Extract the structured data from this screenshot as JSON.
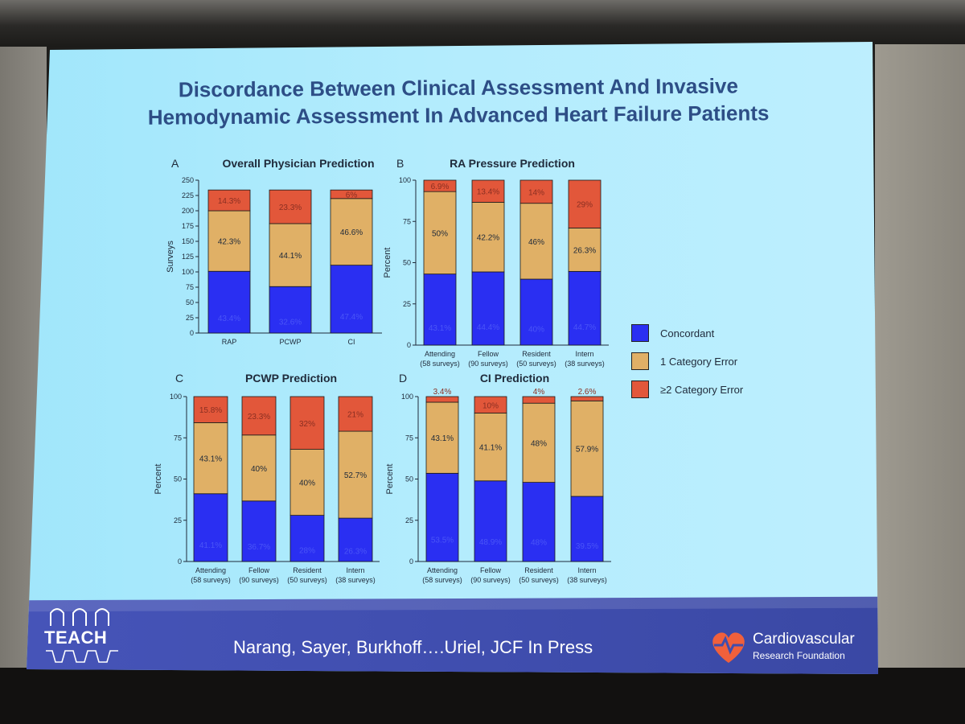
{
  "slide": {
    "title_line1": "Discordance Between Clinical Assessment And Invasive",
    "title_line2": "Hemodynamic Assessment In Advanced Heart Failure Patients",
    "citation": "Narang, Sayer, Burkhoff….Uriel, JCF In Press",
    "teach_logo": "TEACH",
    "org_name": "Cardiovascular",
    "org_sub": "Research Foundation"
  },
  "colors": {
    "concordant": "#2a2ff2",
    "one_error": "#e0b066",
    "two_error": "#e2573a",
    "axis": "#1f2a3a"
  },
  "legend": [
    {
      "label": "Concordant",
      "color": "#2a2ff2"
    },
    {
      "label": "1 Category Error",
      "color": "#e0b066"
    },
    {
      "label": "≥2 Category Error",
      "color": "#e2573a"
    }
  ],
  "chart_data": [
    {
      "type": "bar",
      "panel_letter": "A",
      "title": "Overall Physician Prediction",
      "ylabel": "Surveys",
      "ylim": [
        0,
        250
      ],
      "yticks": [
        "0",
        "25",
        "50",
        "75",
        "100",
        "125",
        "150",
        "175",
        "200",
        "225",
        "250"
      ],
      "categories": [
        {
          "line1": "RAP",
          "line2": ""
        },
        {
          "line1": "PCWP",
          "line2": ""
        },
        {
          "line1": "CI",
          "line2": ""
        }
      ],
      "series": [
        {
          "name": "Concordant",
          "values": [
            101,
            76,
            111
          ],
          "labels": [
            "43.4%",
            "32.6%",
            "47.4%"
          ]
        },
        {
          "name": "1 Category Error",
          "values": [
            99,
            103,
            109
          ],
          "labels": [
            "42.3%",
            "44.1%",
            "46.6%"
          ]
        },
        {
          "name": "≥2 Category Error",
          "values": [
            34,
            55,
            14
          ],
          "labels": [
            "14.3%",
            "23.3%",
            "6%"
          ]
        }
      ]
    },
    {
      "type": "bar",
      "panel_letter": "B",
      "title": "RA Pressure Prediction",
      "ylabel": "Percent",
      "ylim": [
        0,
        100
      ],
      "yticks": [
        "0",
        "25",
        "50",
        "75",
        "100"
      ],
      "categories": [
        {
          "line1": "Attending",
          "line2": "(58 surveys)"
        },
        {
          "line1": "Fellow",
          "line2": "(90 surveys)"
        },
        {
          "line1": "Resident",
          "line2": "(50 surveys)"
        },
        {
          "line1": "Intern",
          "line2": "(38 surveys)"
        }
      ],
      "series": [
        {
          "name": "Concordant",
          "values": [
            43.1,
            44.4,
            40,
            44.7
          ],
          "labels": [
            "43.1%",
            "44.4%",
            "40%",
            "44.7%"
          ]
        },
        {
          "name": "1 Category Error",
          "values": [
            50,
            42.2,
            46,
            26.3
          ],
          "labels": [
            "50%",
            "42.2%",
            "46%",
            "26.3%"
          ]
        },
        {
          "name": "≥2 Category Error",
          "values": [
            6.9,
            13.4,
            14,
            29
          ],
          "labels": [
            "6.9%",
            "13.4%",
            "14%",
            "29%"
          ]
        }
      ]
    },
    {
      "type": "bar",
      "panel_letter": "C",
      "title": "PCWP Prediction",
      "ylabel": "Percent",
      "ylim": [
        0,
        100
      ],
      "yticks": [
        "0",
        "25",
        "50",
        "75",
        "100"
      ],
      "categories": [
        {
          "line1": "Attending",
          "line2": "(58 surveys)"
        },
        {
          "line1": "Fellow",
          "line2": "(90 surveys)"
        },
        {
          "line1": "Resident",
          "line2": "(50 surveys)"
        },
        {
          "line1": "Intern",
          "line2": "(38 surveys)"
        }
      ],
      "series": [
        {
          "name": "Concordant",
          "values": [
            41.1,
            36.7,
            28,
            26.3
          ],
          "labels": [
            "41.1%",
            "36.7%",
            "28%",
            "26.3%"
          ]
        },
        {
          "name": "1 Category Error",
          "values": [
            43.1,
            40,
            40,
            52.7
          ],
          "labels": [
            "43.1%",
            "40%",
            "40%",
            "52.7%"
          ]
        },
        {
          "name": "≥2 Category Error",
          "values": [
            15.8,
            23.3,
            32,
            21
          ],
          "labels": [
            "15.8%",
            "23.3%",
            "32%",
            "21%"
          ]
        }
      ]
    },
    {
      "type": "bar",
      "panel_letter": "D",
      "title": "CI Prediction",
      "ylabel": "Percent",
      "ylim": [
        0,
        100
      ],
      "yticks": [
        "0",
        "25",
        "50",
        "75",
        "100"
      ],
      "categories": [
        {
          "line1": "Attending",
          "line2": "(58 surveys)"
        },
        {
          "line1": "Fellow",
          "line2": "(90 surveys)"
        },
        {
          "line1": "Resident",
          "line2": "(50 surveys)"
        },
        {
          "line1": "Intern",
          "line2": "(38 surveys)"
        }
      ],
      "series": [
        {
          "name": "Concordant",
          "values": [
            53.5,
            48.9,
            48,
            39.5
          ],
          "labels": [
            "53.5%",
            "48.9%",
            "48%",
            "39.5%"
          ]
        },
        {
          "name": "1 Category Error",
          "values": [
            43.1,
            41.1,
            48,
            57.9
          ],
          "labels": [
            "43.1%",
            "41.1%",
            "48%",
            "57.9%"
          ]
        },
        {
          "name": "≥2 Category Error",
          "values": [
            3.4,
            10,
            4,
            2.6
          ],
          "labels": [
            "3.4%",
            "10%",
            "4%",
            "2.6%"
          ]
        }
      ]
    }
  ]
}
